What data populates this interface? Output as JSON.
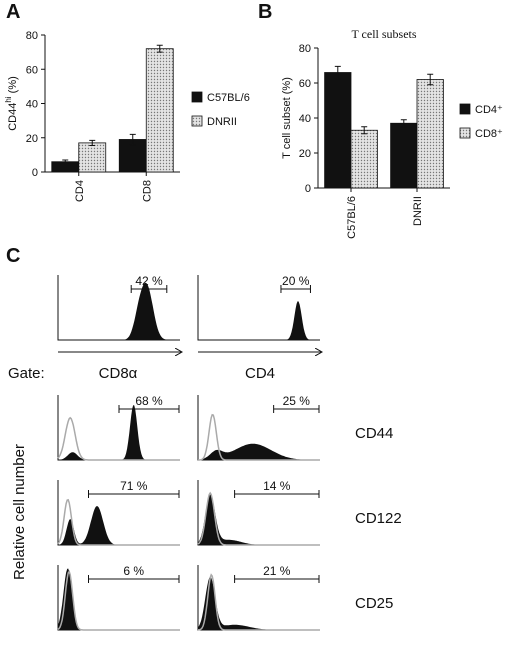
{
  "chart_data": [
    {
      "type": "bar",
      "panel_label": "A",
      "ylabel": [
        "CD44",
        "hi",
        " (%)"
      ],
      "categories": [
        "CD4",
        "CD8"
      ],
      "series": [
        {
          "name": "C57BL/6",
          "color": "#111111",
          "values": [
            6,
            19
          ],
          "errors": [
            1,
            3
          ]
        },
        {
          "name": "DNRII",
          "color": "dotted",
          "values": [
            17,
            72
          ],
          "errors": [
            1.5,
            2
          ]
        }
      ],
      "ylim": [
        0,
        80
      ],
      "yticks": [
        0,
        20,
        40,
        60,
        80
      ]
    },
    {
      "type": "bar",
      "panel_label": "B",
      "title": "T cell subsets",
      "ylabel": [
        "T cell subset  (%)"
      ],
      "categories": [
        "C57BL/6",
        "DNRII"
      ],
      "series": [
        {
          "name": "CD4⁺",
          "color": "#111111",
          "values": [
            66,
            37
          ],
          "errors": [
            3.5,
            2
          ]
        },
        {
          "name": "CD8⁺",
          "color": "dotted",
          "values": [
            33,
            62
          ],
          "errors": [
            2,
            3
          ]
        }
      ],
      "ylim": [
        0,
        80
      ],
      "yticks": [
        0,
        20,
        40,
        60,
        80
      ]
    }
  ],
  "panel_c": {
    "label": "C",
    "gate": "Gate:",
    "columns": [
      "CD8α",
      "CD4"
    ],
    "ylabel": "Relative cell number",
    "top": {
      "percents": [
        "42 %",
        "20 %"
      ]
    },
    "rows": [
      {
        "marker": "CD44",
        "percents": [
          "68 %",
          "25 %"
        ]
      },
      {
        "marker": "CD122",
        "percents": [
          "71 %",
          "14 %"
        ]
      },
      {
        "marker": "CD25",
        "percents": [
          "6 %",
          "21 %"
        ]
      }
    ]
  }
}
